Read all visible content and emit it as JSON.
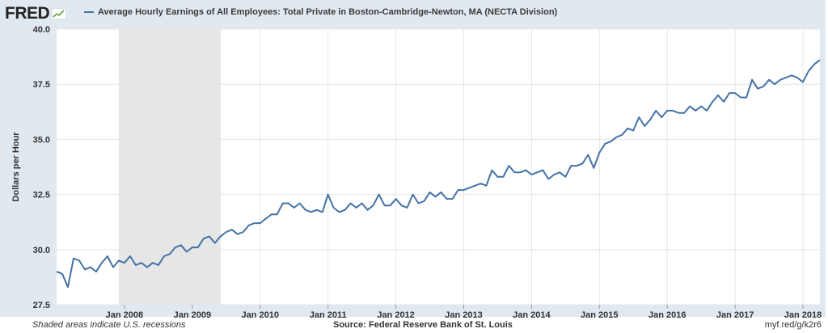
{
  "header": {
    "logo_text": "FRED",
    "legend_label": "Average Hourly Earnings of All Employees: Total Private in Boston-Cambridge-Newton, MA (NECTA Division)"
  },
  "footer": {
    "note": "Shaded areas indicate U.S. recessions",
    "source": "Source: Federal Reserve Bank of St. Louis",
    "shortlink": "myf.red/g/k2r6"
  },
  "colors": {
    "line": "#4572a7",
    "recession": "#e6e6e6",
    "frame": "#e1e9f0",
    "grid": "#e6e6e6"
  },
  "chart_data": {
    "type": "line",
    "title": "",
    "xlabel": "",
    "ylabel": "Dollars per Hour",
    "ylim": [
      27.5,
      40.0
    ],
    "yticks": [
      "27.5",
      "30.0",
      "32.5",
      "35.0",
      "37.5",
      "40.0"
    ],
    "xticks": [
      {
        "label": "Jan 2008",
        "date": "2008-01"
      },
      {
        "label": "Jan 2009",
        "date": "2009-01"
      },
      {
        "label": "Jan 2010",
        "date": "2010-01"
      },
      {
        "label": "Jan 2011",
        "date": "2011-01"
      },
      {
        "label": "Jan 2012",
        "date": "2012-01"
      },
      {
        "label": "Jan 2013",
        "date": "2013-01"
      },
      {
        "label": "Jan 2014",
        "date": "2014-01"
      },
      {
        "label": "Jan 2015",
        "date": "2015-01"
      },
      {
        "label": "Jan 2016",
        "date": "2016-01"
      },
      {
        "label": "Jan 2017",
        "date": "2017-01"
      },
      {
        "label": "Jan 2018",
        "date": "2018-01"
      }
    ],
    "x_range": [
      "2007-01",
      "2018-04"
    ],
    "recessions": [
      {
        "start": "2007-12",
        "end": "2009-06"
      }
    ],
    "grid": true,
    "series": [
      {
        "name": "Average Hourly Earnings of All Employees: Total Private in Boston-Cambridge-Newton, MA (NECTA Division)",
        "start": "2007-01",
        "frequency": "monthly",
        "values": [
          29.0,
          28.9,
          28.3,
          29.6,
          29.5,
          29.1,
          29.2,
          29.0,
          29.4,
          29.7,
          29.2,
          29.5,
          29.4,
          29.7,
          29.3,
          29.4,
          29.2,
          29.4,
          29.3,
          29.7,
          29.8,
          30.1,
          30.2,
          29.9,
          30.1,
          30.1,
          30.5,
          30.6,
          30.3,
          30.6,
          30.8,
          30.9,
          30.7,
          30.8,
          31.1,
          31.2,
          31.2,
          31.4,
          31.6,
          31.6,
          32.1,
          32.1,
          31.9,
          32.1,
          31.8,
          31.7,
          31.8,
          31.7,
          32.5,
          31.9,
          31.7,
          31.8,
          32.1,
          31.9,
          32.1,
          31.8,
          32.0,
          32.5,
          32.0,
          32.0,
          32.3,
          32.0,
          31.9,
          32.5,
          32.1,
          32.2,
          32.6,
          32.4,
          32.6,
          32.3,
          32.3,
          32.7,
          32.7,
          32.8,
          32.9,
          33.0,
          32.9,
          33.6,
          33.3,
          33.3,
          33.8,
          33.5,
          33.5,
          33.6,
          33.4,
          33.5,
          33.6,
          33.2,
          33.4,
          33.5,
          33.3,
          33.8,
          33.8,
          33.9,
          34.3,
          33.7,
          34.4,
          34.8,
          34.9,
          35.1,
          35.2,
          35.5,
          35.4,
          36.0,
          35.6,
          35.9,
          36.3,
          36.0,
          36.3,
          36.3,
          36.2,
          36.2,
          36.5,
          36.3,
          36.5,
          36.3,
          36.7,
          37.0,
          36.7,
          37.1,
          37.1,
          36.9,
          36.9,
          37.7,
          37.3,
          37.4,
          37.7,
          37.5,
          37.7,
          37.8,
          37.9,
          37.8,
          37.6,
          38.1,
          38.4,
          38.6
        ]
      }
    ]
  }
}
